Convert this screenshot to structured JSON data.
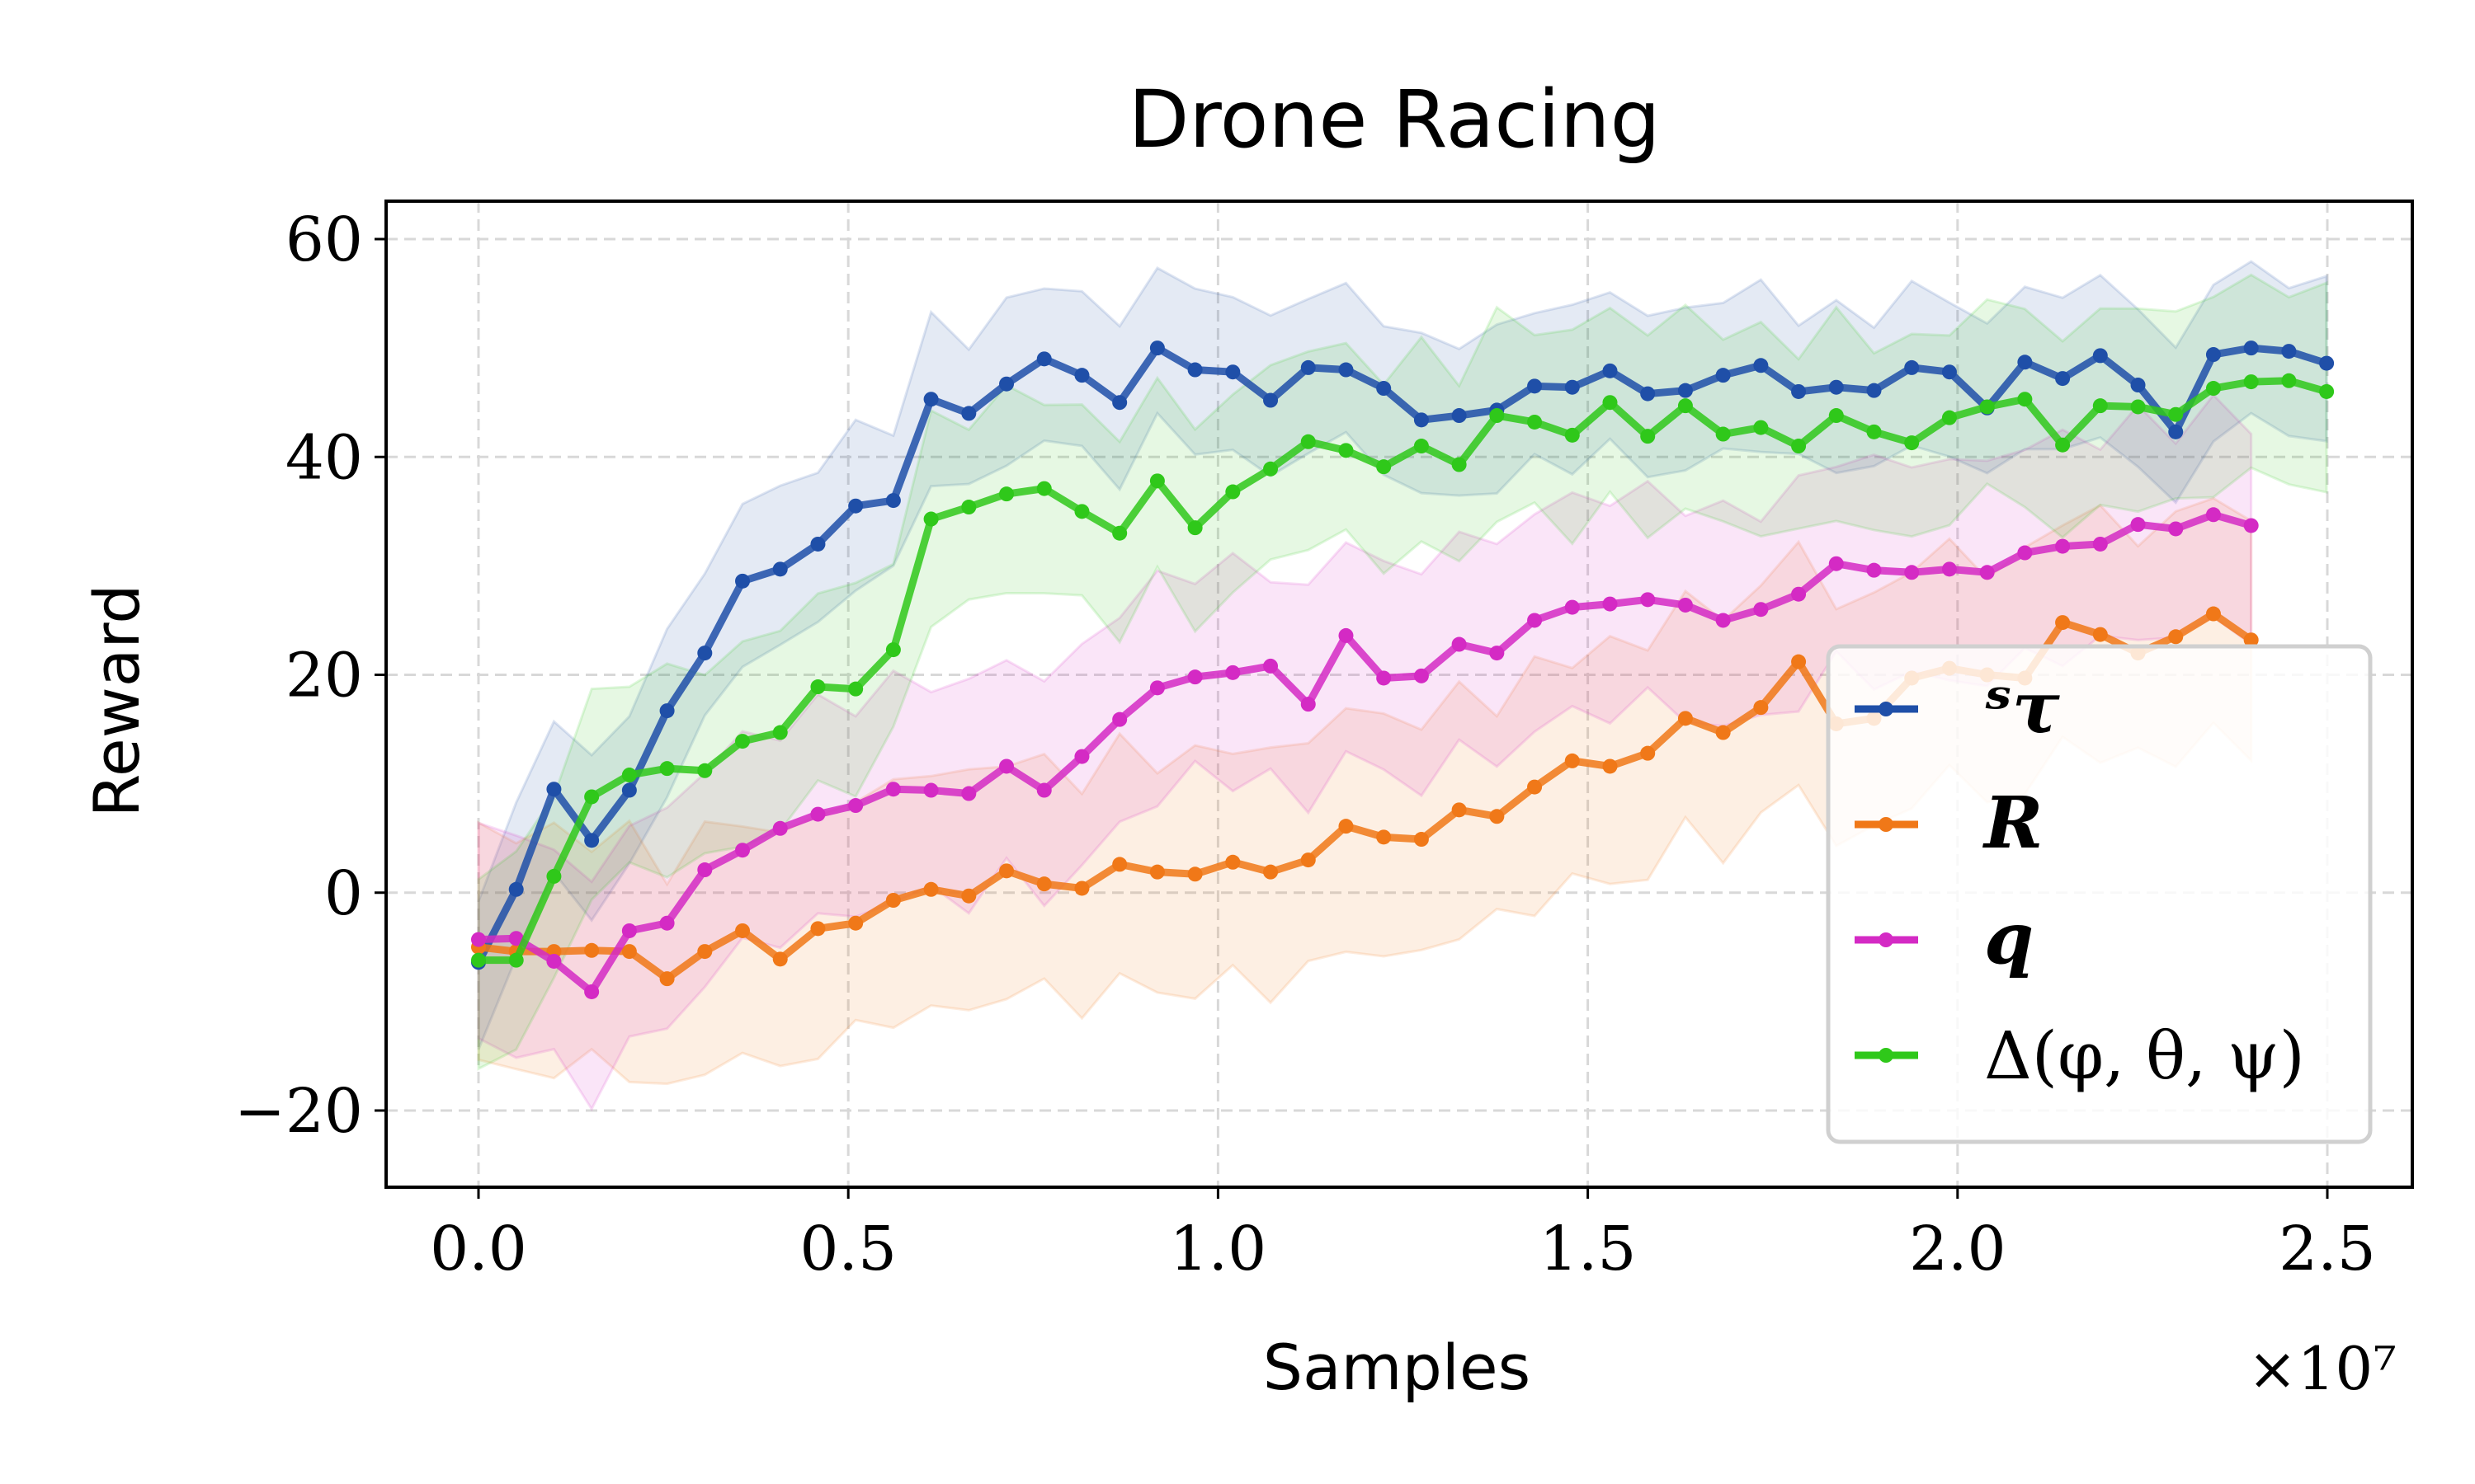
{
  "chart_data": {
    "type": "line",
    "title": "Drone Racing",
    "xlabel": "Samples",
    "ylabel": "Reward",
    "x_multiplier_label": "×10⁷",
    "xlim": [
      -0.125,
      2.62
    ],
    "ylim": [
      -27,
      63.5
    ],
    "xticks": [
      0.0,
      0.5,
      1.0,
      1.5,
      2.0,
      2.5
    ],
    "xtick_labels": [
      "0.0",
      "0.5",
      "1.0",
      "1.5",
      "2.0",
      "2.5"
    ],
    "yticks": [
      -20,
      0,
      20,
      40,
      60
    ],
    "ytick_labels": [
      "−20",
      "0",
      "20",
      "40",
      "60"
    ],
    "grid": true,
    "legend_position": "lower-right",
    "x_step": 0.051,
    "series": [
      {
        "name": "ˢτ",
        "color": "#1f4fa8",
        "band_spread": 8,
        "values": [
          -6.4,
          0.3,
          9.5,
          4.8,
          9.4,
          16.7,
          22,
          28.6,
          29.7,
          32,
          35.5,
          36,
          45.3,
          44,
          46.7,
          49,
          47.5,
          45,
          50,
          48,
          47.8,
          45.2,
          48.2,
          48,
          46.3,
          43.4,
          43.8,
          44.3,
          46.5,
          46.4,
          47.9,
          45.8,
          46.1,
          47.5,
          48.4,
          46,
          46.4,
          46.1,
          48.2,
          47.8,
          44.5,
          48.7,
          47.2,
          49.3,
          46.6,
          42.3,
          49.4,
          50,
          49.7,
          48.6
        ]
      },
      {
        "name": "R",
        "color": "#f07818",
        "band_spread": 12,
        "values": [
          -5,
          -5.4,
          -5.4,
          -5.3,
          -5.4,
          -7.9,
          -5.4,
          -3.5,
          -6.1,
          -3.3,
          -2.8,
          -0.7,
          0.3,
          -0.3,
          2,
          0.8,
          0.4,
          2.6,
          1.9,
          1.7,
          2.8,
          1.9,
          3,
          6.1,
          5.1,
          4.9,
          7.6,
          7,
          9.7,
          12.1,
          11.6,
          12.8,
          16,
          14.7,
          17,
          21.2,
          15.5,
          16,
          19.7,
          20.6,
          20,
          19.7,
          24.8,
          23.7,
          22,
          23.5,
          25.6,
          23.2
        ]
      },
      {
        "name": "q",
        "color": "#d42ac4",
        "band_spread": 11,
        "values": [
          -4.3,
          -4.2,
          -6.3,
          -9.1,
          -3.5,
          -2.8,
          2.1,
          3.9,
          5.9,
          7.2,
          8,
          9.5,
          9.4,
          9.1,
          11.6,
          9.4,
          12.5,
          15.9,
          18.8,
          19.8,
          20.2,
          20.8,
          17.3,
          23.6,
          19.7,
          19.9,
          22.8,
          22,
          25,
          26.2,
          26.5,
          26.9,
          26.4,
          25,
          26,
          27.4,
          30.2,
          29.6,
          29.4,
          29.7,
          29.4,
          31.2,
          31.8,
          32,
          33.8,
          33.4,
          34.7,
          33.7
        ]
      },
      {
        "name": "Δ(φ, θ, ψ)",
        "color": "#2fc81a",
        "band_spread": 10,
        "values": [
          -6.2,
          -6.2,
          1.5,
          8.8,
          10.8,
          11.4,
          11.2,
          13.9,
          14.7,
          18.9,
          18.7,
          22.3,
          34.3,
          35.4,
          36.6,
          37.1,
          35,
          33,
          37.8,
          33.5,
          36.8,
          38.9,
          41.4,
          40.6,
          39.1,
          41,
          39.3,
          43.8,
          43.2,
          42,
          45,
          41.9,
          44.7,
          42.1,
          42.7,
          41,
          43.8,
          42.3,
          41.3,
          43.6,
          44.6,
          45.3,
          41.1,
          44.7,
          44.6,
          43.9,
          46.3,
          46.9,
          47,
          46
        ]
      }
    ]
  }
}
